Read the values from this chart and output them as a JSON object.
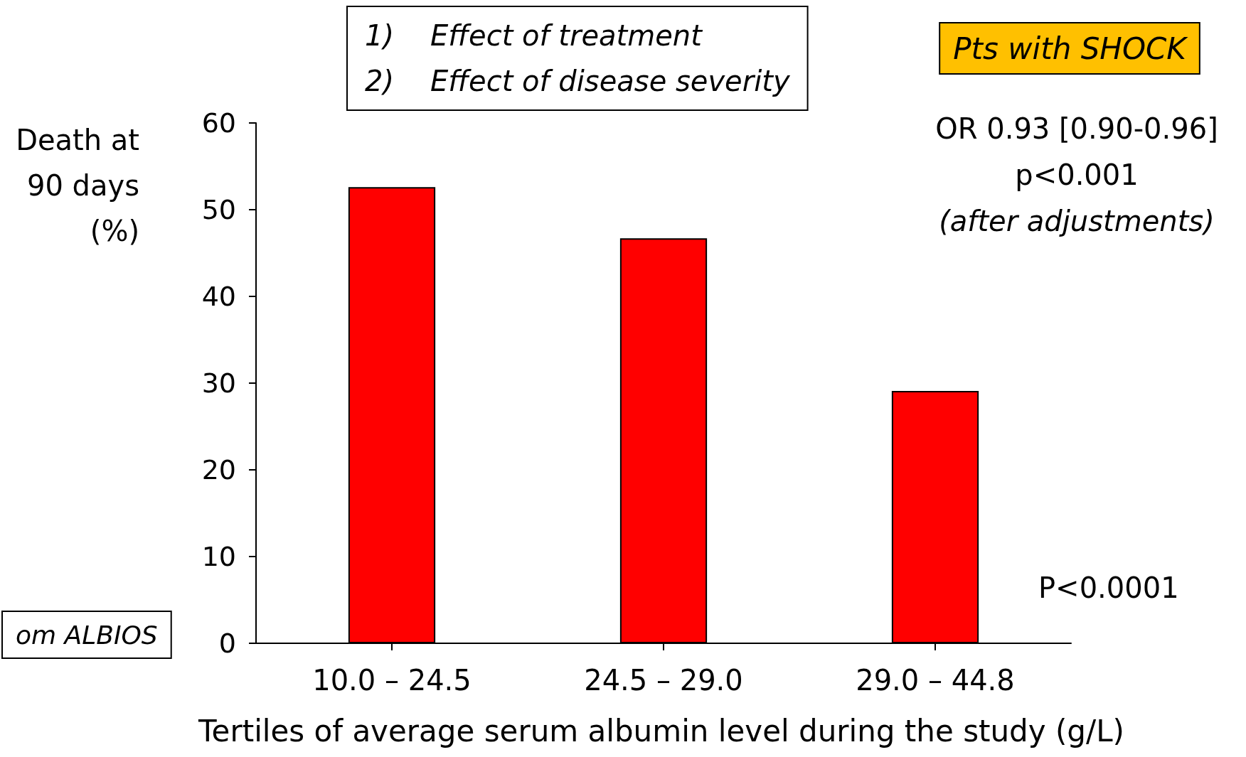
{
  "chart_data": {
    "type": "bar",
    "categories": [
      "10.0 – 24.5",
      "24.5 – 29.0",
      "29.0 – 44.8"
    ],
    "values": [
      52.6,
      46.7,
      29.1
    ],
    "color": "#ff0000",
    "xlabel": "Tertiles of average serum albumin level during the study (g/L)",
    "ylabel": "Death at\n90 days\n(%)",
    "ylim": [
      0,
      60
    ],
    "yticks": [
      0,
      10,
      20,
      30,
      40,
      50,
      60
    ],
    "grid": false,
    "annotations": [
      "1)    Effect of treatment",
      "2)    Effect of disease severity",
      "Pts with SHOCK",
      "OR 0.93 [0.90-0.96]",
      "p<0.001",
      "(after adjustments)",
      "P<0.0001",
      "om ALBIOS"
    ]
  }
}
